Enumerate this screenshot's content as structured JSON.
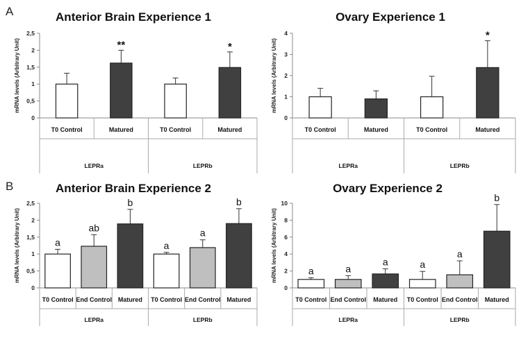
{
  "panel_labels": [
    "A",
    "B"
  ],
  "chart_data": [
    {
      "type": "bar",
      "title": "Anterior Brain Experience 1",
      "ylabel": "mRNA levels (Arbitrary Unit)",
      "ylim": [
        0,
        2.5
      ],
      "yticks": [
        "0",
        "0,5",
        "1",
        "1,5",
        "2",
        "2,5"
      ],
      "yticks_values": [
        0,
        0.5,
        1,
        1.5,
        2,
        2.5
      ],
      "groups": [
        {
          "name": "LEPRa",
          "bars": [
            {
              "category": "T0 Control",
              "value": 1.0,
              "error": 0.32,
              "fill": "#ffffff",
              "note": ""
            },
            {
              "category": "Matured",
              "value": 1.62,
              "error": 0.38,
              "fill": "#404040",
              "note": "**"
            }
          ]
        },
        {
          "name": "LEPRb",
          "bars": [
            {
              "category": "T0 Control",
              "value": 1.0,
              "error": 0.18,
              "fill": "#ffffff",
              "note": ""
            },
            {
              "category": "Matured",
              "value": 1.49,
              "error": 0.46,
              "fill": "#404040",
              "note": "*"
            }
          ]
        }
      ]
    },
    {
      "type": "bar",
      "title": "Ovary Experience 1",
      "ylabel": "mRNA levels (Arbitrary Unit)",
      "ylim": [
        0,
        4
      ],
      "yticks": [
        "0",
        "1",
        "2",
        "3",
        "4"
      ],
      "yticks_values": [
        0,
        1,
        2,
        3,
        4
      ],
      "groups": [
        {
          "name": "LEPRa",
          "bars": [
            {
              "category": "T0 Control",
              "value": 1.0,
              "error": 0.4,
              "fill": "#ffffff",
              "note": ""
            },
            {
              "category": "Matured",
              "value": 0.9,
              "error": 0.38,
              "fill": "#404040",
              "note": ""
            }
          ]
        },
        {
          "name": "LEPRb",
          "bars": [
            {
              "category": "T0 Control",
              "value": 1.0,
              "error": 0.97,
              "fill": "#ffffff",
              "note": ""
            },
            {
              "category": "Matured",
              "value": 2.38,
              "error": 1.27,
              "fill": "#404040",
              "note": "*"
            }
          ]
        }
      ]
    },
    {
      "type": "bar",
      "title": "Anterior Brain Experience 2",
      "ylabel": "mRNA levels (Arbitrary Unit)",
      "ylim": [
        0,
        2.5
      ],
      "yticks": [
        "0",
        "0,5",
        "1",
        "1,5",
        "2",
        "2,5"
      ],
      "yticks_values": [
        0,
        0.5,
        1,
        1.5,
        2,
        2.5
      ],
      "groups": [
        {
          "name": "LEPRa",
          "bars": [
            {
              "category": "T0 Control",
              "value": 1.0,
              "error": 0.14,
              "fill": "#ffffff",
              "note": "a"
            },
            {
              "category": "End Control",
              "value": 1.23,
              "error": 0.34,
              "fill": "#bfbfbf",
              "note": "ab"
            },
            {
              "category": "Matured",
              "value": 1.89,
              "error": 0.43,
              "fill": "#404040",
              "note": "b"
            }
          ]
        },
        {
          "name": "LEPRb",
          "bars": [
            {
              "category": "T0 Control",
              "value": 1.0,
              "error": 0.05,
              "fill": "#ffffff",
              "note": "a"
            },
            {
              "category": "End Control",
              "value": 1.19,
              "error": 0.23,
              "fill": "#bfbfbf",
              "note": "a"
            },
            {
              "category": "Matured",
              "value": 1.9,
              "error": 0.44,
              "fill": "#404040",
              "note": "b"
            }
          ]
        }
      ]
    },
    {
      "type": "bar",
      "title": "Ovary Experience 2",
      "ylabel": "mRNA levels (Arbitrary Unit)",
      "ylim": [
        0,
        10
      ],
      "yticks": [
        "0",
        "2",
        "4",
        "6",
        "8",
        "10"
      ],
      "yticks_values": [
        0,
        2,
        4,
        6,
        8,
        10
      ],
      "groups": [
        {
          "name": "LEPRa",
          "bars": [
            {
              "category": "T0 Control",
              "value": 1.0,
              "error": 0.2,
              "fill": "#ffffff",
              "note": "a"
            },
            {
              "category": "End Control",
              "value": 1.0,
              "error": 0.45,
              "fill": "#bfbfbf",
              "note": "a"
            },
            {
              "category": "Matured",
              "value": 1.65,
              "error": 0.6,
              "fill": "#404040",
              "note": "a"
            }
          ]
        },
        {
          "name": "LEPRb",
          "bars": [
            {
              "category": "T0 Control",
              "value": 1.0,
              "error": 0.95,
              "fill": "#ffffff",
              "note": "a"
            },
            {
              "category": "End Control",
              "value": 1.55,
              "error": 1.65,
              "fill": "#bfbfbf",
              "note": "a"
            },
            {
              "category": "Matured",
              "value": 6.7,
              "error": 3.15,
              "fill": "#404040",
              "note": "b"
            }
          ]
        }
      ]
    }
  ]
}
